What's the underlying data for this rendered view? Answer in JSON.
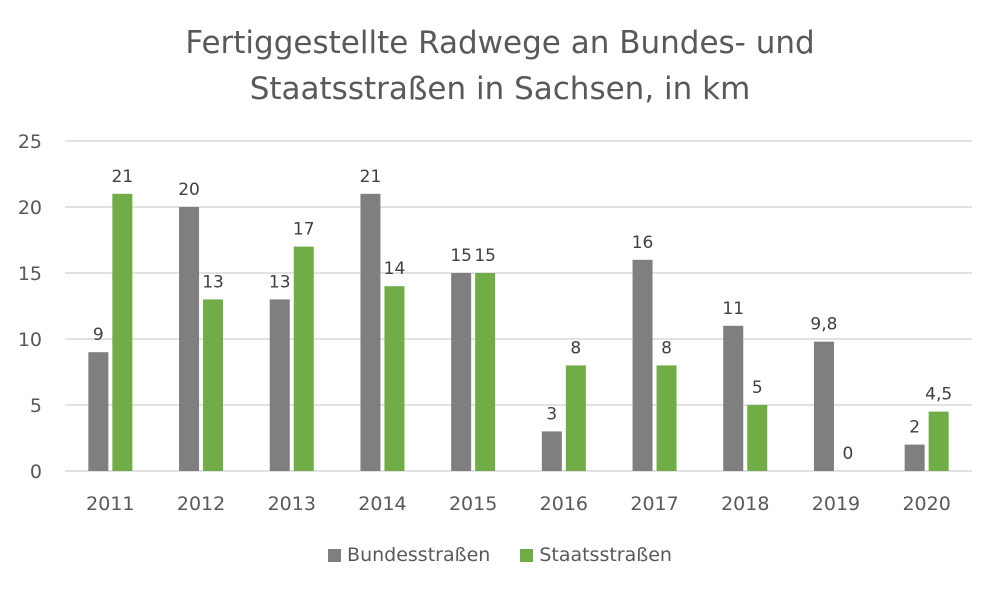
{
  "chart_data": {
    "type": "bar",
    "title_lines": [
      "Fertiggestellte Radwege an Bundes- und",
      "Staatsstraßen in Sachsen, in km"
    ],
    "title": "Fertiggestellte Radwege an Bundes- und Staatsstraßen in Sachsen, in km",
    "xlabel": "",
    "ylabel": "",
    "categories": [
      "2011",
      "2012",
      "2013",
      "2014",
      "2015",
      "2016",
      "2017",
      "2018",
      "2019",
      "2020"
    ],
    "series": [
      {
        "name": "Bundesstraßen",
        "color": "#7f7f7f",
        "values": [
          9,
          20,
          13,
          21,
          15,
          3,
          16,
          11,
          9.8,
          2
        ],
        "labels": [
          "9",
          "20",
          "13",
          "21",
          "15",
          "3",
          "16",
          "11",
          "9,8",
          "2"
        ]
      },
      {
        "name": "Staatsstraßen",
        "color": "#70ad47",
        "values": [
          21,
          13,
          17,
          14,
          15,
          8,
          8,
          5,
          0,
          4.5
        ],
        "labels": [
          "21",
          "13",
          "17",
          "14",
          "15",
          "8",
          "8",
          "5",
          "0",
          "4,5"
        ]
      }
    ],
    "ylim": [
      0,
      25
    ],
    "yticks": [
      "0",
      "5",
      "10",
      "15",
      "20",
      "25"
    ],
    "grid": true,
    "legend_position": "bottom"
  }
}
